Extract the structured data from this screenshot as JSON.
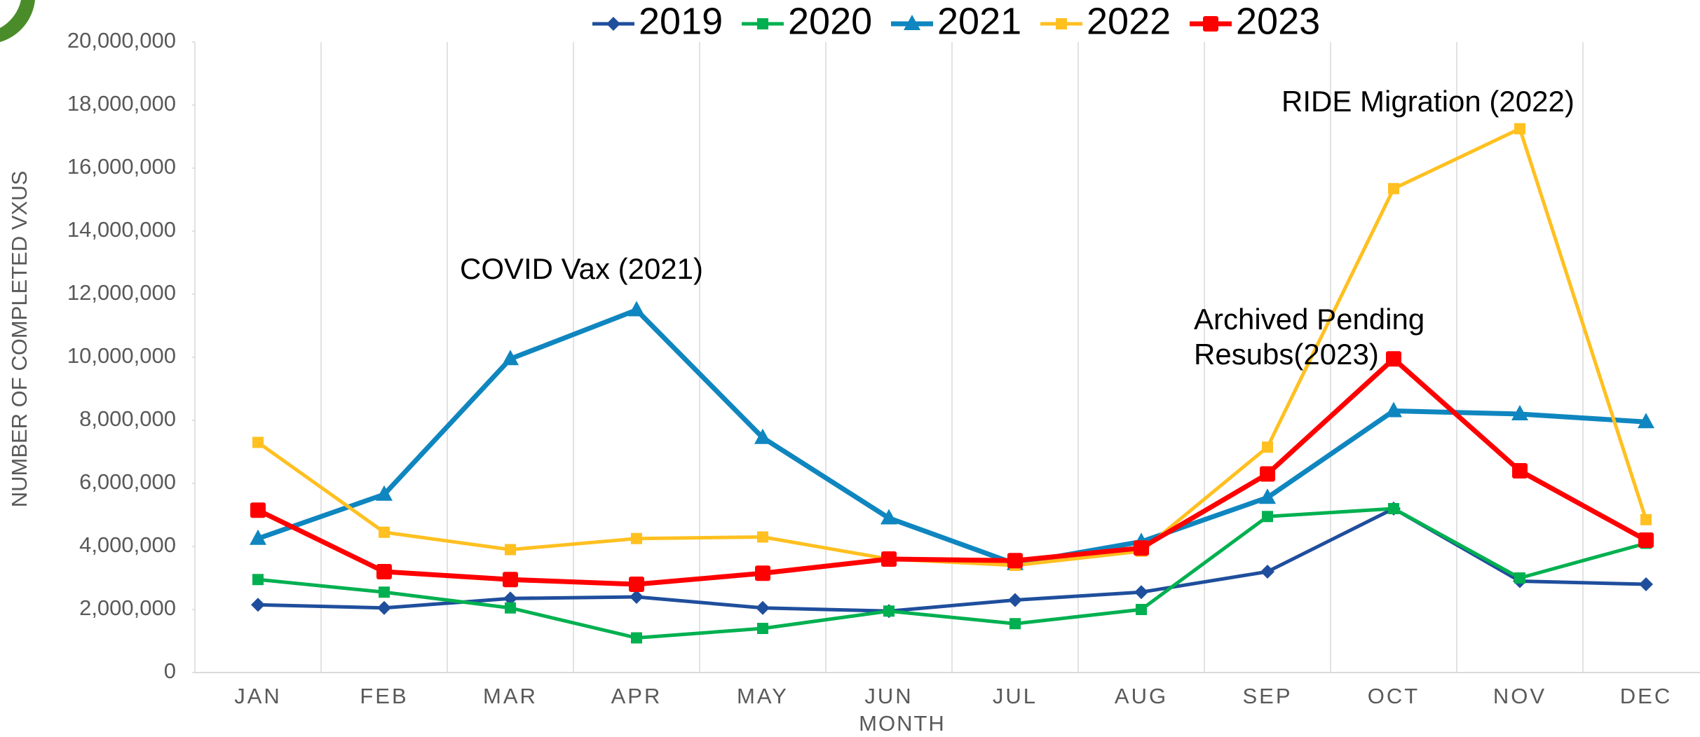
{
  "chart_data": {
    "type": "line",
    "categories": [
      "JAN",
      "FEB",
      "MAR",
      "APR",
      "MAY",
      "JUN",
      "JUL",
      "AUG",
      "SEP",
      "OCT",
      "NOV",
      "DEC"
    ],
    "series": [
      {
        "name": "2019",
        "color": "#1f4e9c",
        "marker": "diamond",
        "values": [
          2150000,
          2050000,
          2350000,
          2400000,
          2050000,
          1950000,
          2300000,
          2550000,
          3200000,
          5200000,
          2900000,
          2800000
        ]
      },
      {
        "name": "2020",
        "color": "#00b050",
        "marker": "square",
        "values": [
          2950000,
          2550000,
          2050000,
          1100000,
          1400000,
          1950000,
          1550000,
          2000000,
          4950000,
          5200000,
          3000000,
          4100000
        ]
      },
      {
        "name": "2021",
        "color": "#0f86bf",
        "marker": "triangle",
        "values": [
          4250000,
          5650000,
          9950000,
          11500000,
          7450000,
          4900000,
          3450000,
          4150000,
          5550000,
          8300000,
          8200000,
          7950000
        ]
      },
      {
        "name": "2022",
        "color": "#ffc020",
        "marker": "square",
        "values": [
          7300000,
          4450000,
          3900000,
          4250000,
          4300000,
          3600000,
          3400000,
          3850000,
          7150000,
          15350000,
          17250000,
          4850000
        ]
      },
      {
        "name": "2023",
        "color": "#ff0000",
        "marker": "bigsquare",
        "values": [
          5150000,
          3200000,
          2950000,
          2800000,
          3150000,
          3600000,
          3550000,
          3950000,
          6300000,
          9950000,
          6400000,
          4200000
        ]
      }
    ],
    "ylim": [
      0,
      20000000
    ],
    "yticks": [
      0,
      {
        "value": 2000000,
        "label": "2,000,000"
      },
      {
        "value": 4000000,
        "label": "4,000,000"
      },
      {
        "value": 6000000,
        "label": "6,000,000"
      },
      {
        "value": 8000000,
        "label": "8,000,000"
      },
      {
        "value": 10000000,
        "label": "10,000,000"
      },
      {
        "value": 12000000,
        "label": "12,000,000"
      },
      {
        "value": 14000000,
        "label": "14,000,000"
      },
      {
        "value": 16000000,
        "label": "16,000,000"
      },
      {
        "value": 18000000,
        "label": "18,000,000"
      },
      {
        "value": 20000000,
        "label": "20,000,000"
      }
    ],
    "xlabel": "MONTH",
    "ylabel": "NUMBER OF COMPLETED VXUS",
    "annotations": [
      [
        "COVID Vax (2021)"
      ],
      [
        "RIDE Migration (2022)"
      ],
      [
        "Archived Pending",
        "Resubs(2023)"
      ]
    ],
    "grid": true,
    "legend": "top"
  }
}
